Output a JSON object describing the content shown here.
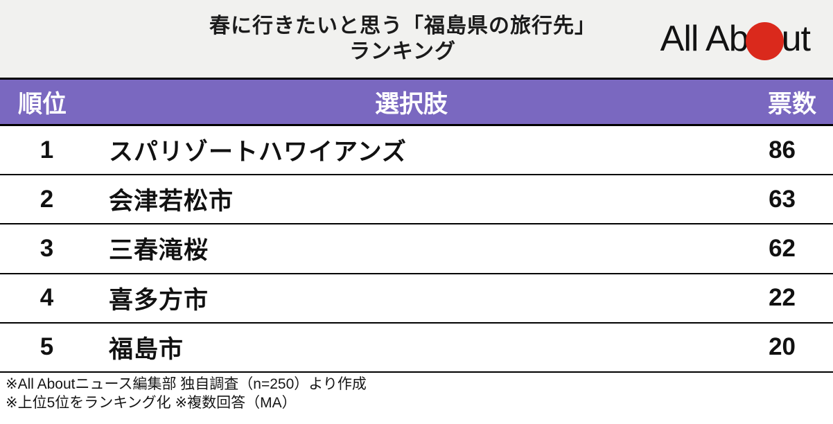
{
  "header": {
    "title_line1": "春に行きたいと思う「福島県の旅行先」",
    "title_line2": "ランキング",
    "logo": {
      "text_before_dot": "All Ab",
      "text_after_dot": "ut",
      "dot_color": "#da291c"
    }
  },
  "table": {
    "columns": {
      "rank": "順位",
      "choice": "選択肢",
      "votes": "票数"
    },
    "header_bg_color": "#7a68c0",
    "rows": [
      {
        "rank": "1",
        "choice": "スパリゾートハワイアンズ",
        "votes": "86"
      },
      {
        "rank": "2",
        "choice": "会津若松市",
        "votes": "63"
      },
      {
        "rank": "3",
        "choice": "三春滝桜",
        "votes": "62"
      },
      {
        "rank": "4",
        "choice": "喜多方市",
        "votes": "22"
      },
      {
        "rank": "5",
        "choice": "福島市",
        "votes": "20"
      }
    ]
  },
  "footer": {
    "note1": "※All Aboutニュース編集部 独自調査（n=250）より作成",
    "note2": "※上位5位をランキング化 ※複数回答（MA）"
  },
  "chart_data": {
    "type": "table",
    "title": "春に行きたいと思う「福島県の旅行先」ランキング",
    "columns": [
      "順位",
      "選択肢",
      "票数"
    ],
    "categories": [
      "スパリゾートハワイアンズ",
      "会津若松市",
      "三春滝桜",
      "喜多方市",
      "福島市"
    ],
    "values": [
      86,
      63,
      62,
      22,
      20
    ],
    "ranks": [
      1,
      2,
      3,
      4,
      5
    ],
    "annotations": [
      "※All Aboutニュース編集部 独自調査（n=250）より作成",
      "※上位5位をランキング化 ※複数回答（MA）"
    ],
    "sample_size": 250
  }
}
